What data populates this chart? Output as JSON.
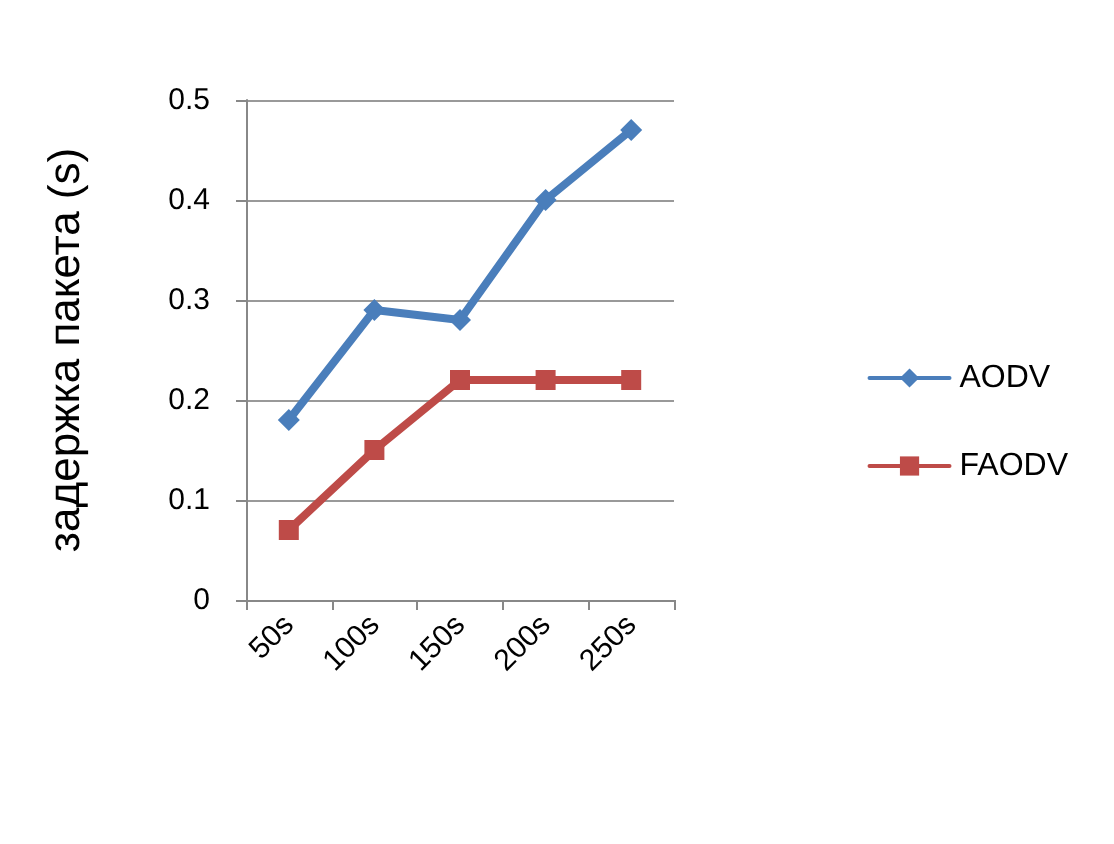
{
  "chart_data": {
    "type": "line",
    "ylabel": "задержка пакета (s)",
    "categories": [
      "50s",
      "100s",
      "150s",
      "200s",
      "250s"
    ],
    "series": [
      {
        "name": "AODV",
        "color": "#4a7ebb",
        "marker": "diamond",
        "values": [
          0.18,
          0.29,
          0.28,
          0.4,
          0.47
        ]
      },
      {
        "name": "FAODV",
        "color": "#be4b48",
        "marker": "square",
        "values": [
          0.07,
          0.15,
          0.22,
          0.22,
          0.22
        ]
      }
    ],
    "ylim": [
      0,
      0.5
    ],
    "yticks": [
      0,
      0.1,
      0.2,
      0.3,
      0.4,
      0.5
    ],
    "grid": "y",
    "legend": "right",
    "line_style": "solid"
  }
}
